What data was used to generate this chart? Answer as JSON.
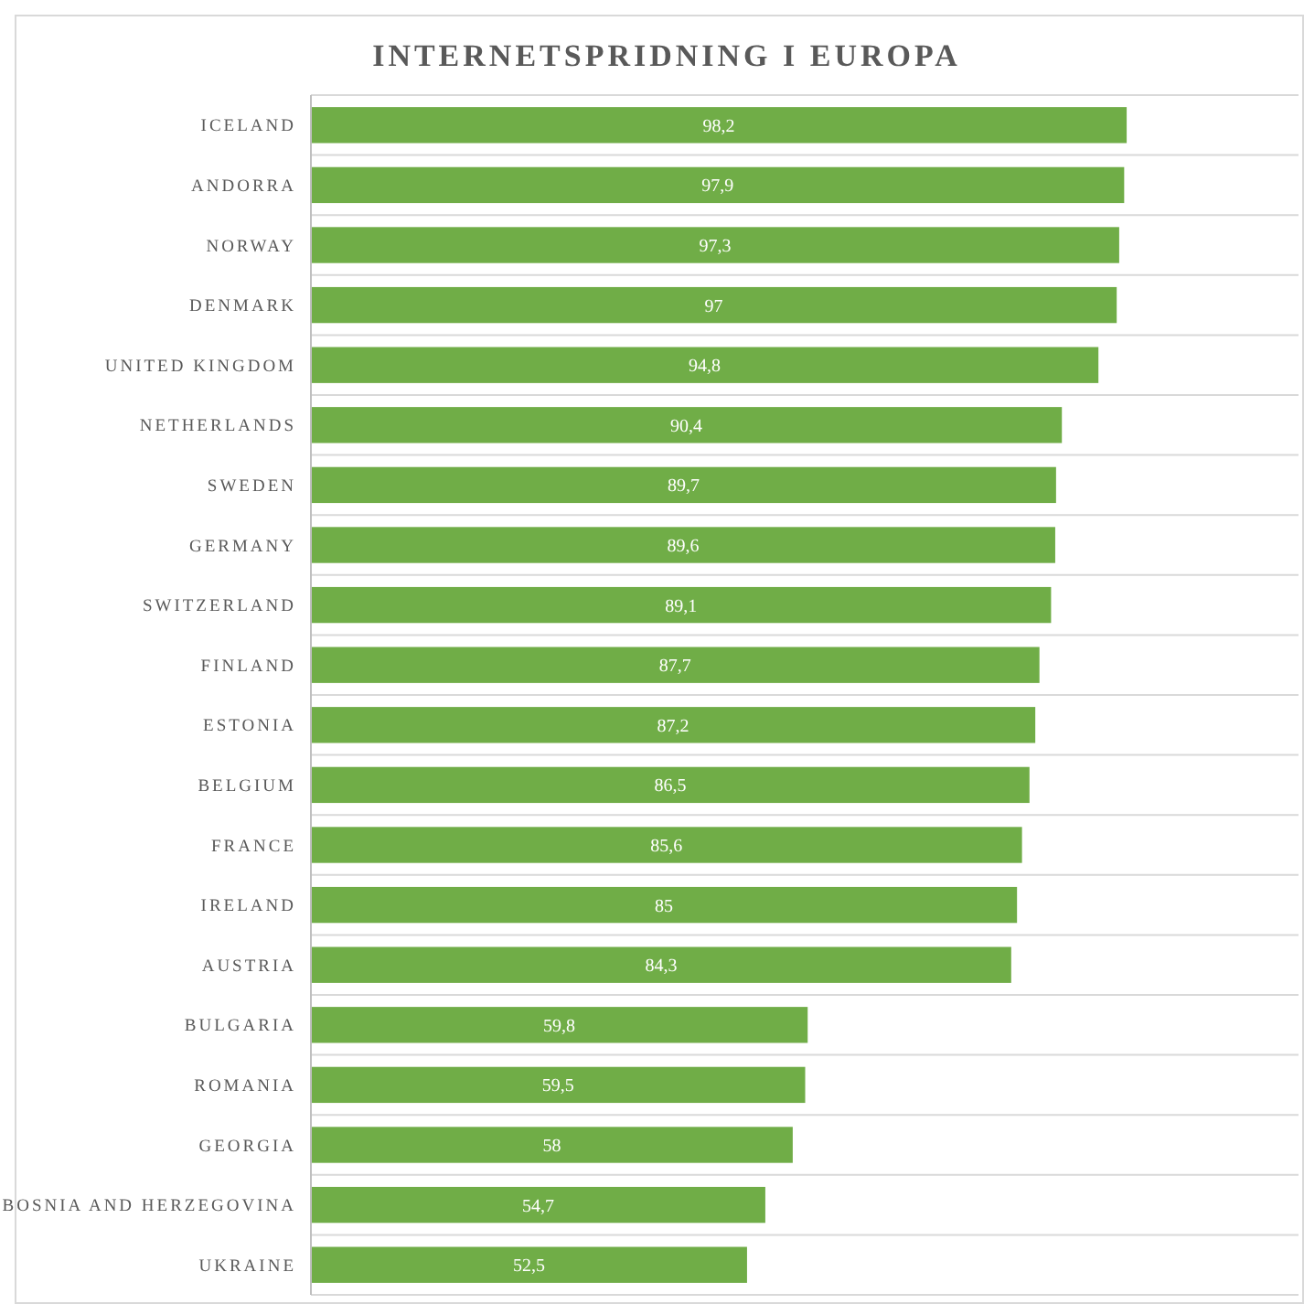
{
  "chart_data": {
    "type": "bar",
    "orientation": "horizontal",
    "title": "INTERNETSPRIDNING I EUROPA",
    "categories": [
      "ICELAND",
      "ANDORRA",
      "NORWAY",
      "DENMARK",
      "UNITED KINGDOM",
      "NETHERLANDS",
      "SWEDEN",
      "GERMANY",
      "SWITZERLAND",
      "FINLAND",
      "ESTONIA",
      "BELGIUM",
      "FRANCE",
      "IRELAND",
      "AUSTRIA",
      "BULGARIA",
      "ROMANIA",
      "GEORGIA",
      "BOSNIA AND HERZEGOVINA",
      "UKRAINE"
    ],
    "values": [
      98.2,
      97.9,
      97.3,
      97,
      94.8,
      90.4,
      89.7,
      89.6,
      89.1,
      87.7,
      87.2,
      86.5,
      85.6,
      85,
      84.3,
      59.8,
      59.5,
      58,
      54.7,
      52.5
    ],
    "value_labels": [
      "98,2",
      "97,9",
      "97,3",
      "97",
      "94,8",
      "90,4",
      "89,7",
      "89,6",
      "89,1",
      "87,7",
      "87,2",
      "86,5",
      "85,6",
      "85",
      "84,3",
      "59,8",
      "59,5",
      "58",
      "54,7",
      "52,5"
    ],
    "color": "#70ad47",
    "grid": "y",
    "tick_labels": "y"
  }
}
